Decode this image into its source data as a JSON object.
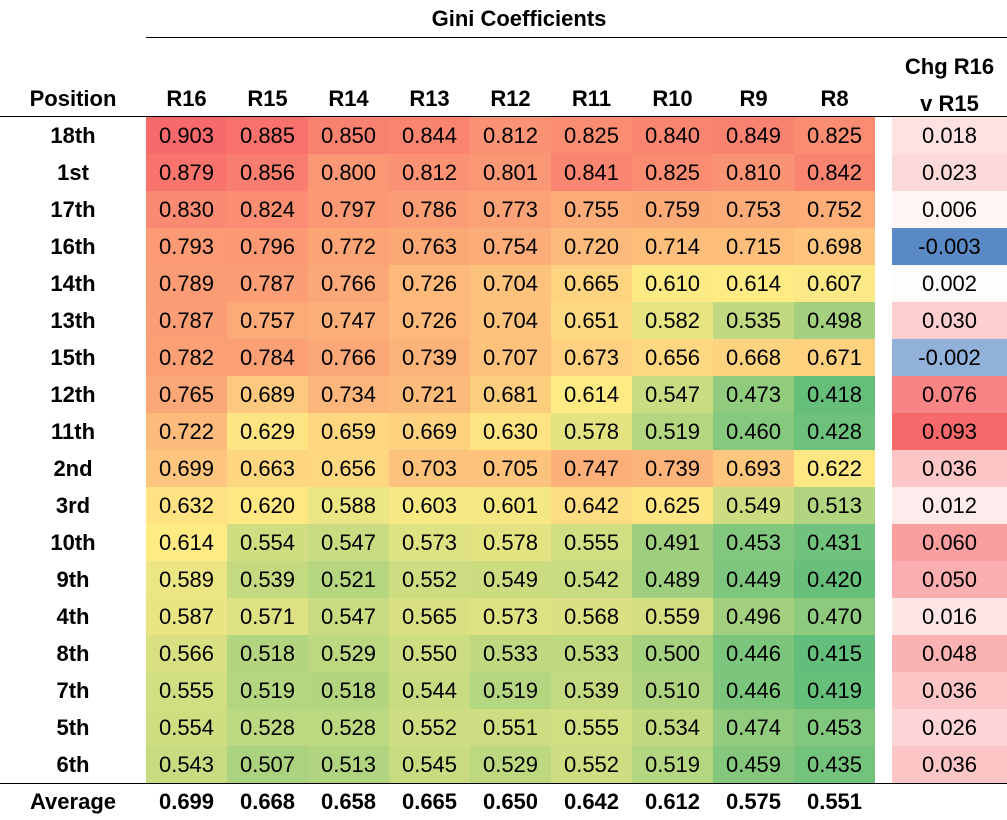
{
  "title": "Gini Coefficients",
  "position_header": "Position",
  "columns": [
    "R16",
    "R15",
    "R14",
    "R13",
    "R12",
    "R11",
    "R10",
    "R9",
    "R8"
  ],
  "change_header_line1": "Chg R16",
  "change_header_line2": "v R15",
  "rows": [
    {
      "position": "18th",
      "values": [
        "0.903",
        "0.885",
        "0.850",
        "0.844",
        "0.812",
        "0.825",
        "0.840",
        "0.849",
        "0.825"
      ],
      "change": "0.018"
    },
    {
      "position": "1st",
      "values": [
        "0.879",
        "0.856",
        "0.800",
        "0.812",
        "0.801",
        "0.841",
        "0.825",
        "0.810",
        "0.842"
      ],
      "change": "0.023"
    },
    {
      "position": "17th",
      "values": [
        "0.830",
        "0.824",
        "0.797",
        "0.786",
        "0.773",
        "0.755",
        "0.759",
        "0.753",
        "0.752"
      ],
      "change": "0.006"
    },
    {
      "position": "16th",
      "values": [
        "0.793",
        "0.796",
        "0.772",
        "0.763",
        "0.754",
        "0.720",
        "0.714",
        "0.715",
        "0.698"
      ],
      "change": "-0.003"
    },
    {
      "position": "14th",
      "values": [
        "0.789",
        "0.787",
        "0.766",
        "0.726",
        "0.704",
        "0.665",
        "0.610",
        "0.614",
        "0.607"
      ],
      "change": "0.002"
    },
    {
      "position": "13th",
      "values": [
        "0.787",
        "0.757",
        "0.747",
        "0.726",
        "0.704",
        "0.651",
        "0.582",
        "0.535",
        "0.498"
      ],
      "change": "0.030"
    },
    {
      "position": "15th",
      "values": [
        "0.782",
        "0.784",
        "0.766",
        "0.739",
        "0.707",
        "0.673",
        "0.656",
        "0.668",
        "0.671"
      ],
      "change": "-0.002"
    },
    {
      "position": "12th",
      "values": [
        "0.765",
        "0.689",
        "0.734",
        "0.721",
        "0.681",
        "0.614",
        "0.547",
        "0.473",
        "0.418"
      ],
      "change": "0.076"
    },
    {
      "position": "11th",
      "values": [
        "0.722",
        "0.629",
        "0.659",
        "0.669",
        "0.630",
        "0.578",
        "0.519",
        "0.460",
        "0.428"
      ],
      "change": "0.093"
    },
    {
      "position": "2nd",
      "values": [
        "0.699",
        "0.663",
        "0.656",
        "0.703",
        "0.705",
        "0.747",
        "0.739",
        "0.693",
        "0.622"
      ],
      "change": "0.036"
    },
    {
      "position": "3rd",
      "values": [
        "0.632",
        "0.620",
        "0.588",
        "0.603",
        "0.601",
        "0.642",
        "0.625",
        "0.549",
        "0.513"
      ],
      "change": "0.012"
    },
    {
      "position": "10th",
      "values": [
        "0.614",
        "0.554",
        "0.547",
        "0.573",
        "0.578",
        "0.555",
        "0.491",
        "0.453",
        "0.431"
      ],
      "change": "0.060"
    },
    {
      "position": "9th",
      "values": [
        "0.589",
        "0.539",
        "0.521",
        "0.552",
        "0.549",
        "0.542",
        "0.489",
        "0.449",
        "0.420"
      ],
      "change": "0.050"
    },
    {
      "position": "4th",
      "values": [
        "0.587",
        "0.571",
        "0.547",
        "0.565",
        "0.573",
        "0.568",
        "0.559",
        "0.496",
        "0.470"
      ],
      "change": "0.016"
    },
    {
      "position": "8th",
      "values": [
        "0.566",
        "0.518",
        "0.529",
        "0.550",
        "0.533",
        "0.533",
        "0.500",
        "0.446",
        "0.415"
      ],
      "change": "0.048"
    },
    {
      "position": "7th",
      "values": [
        "0.555",
        "0.519",
        "0.518",
        "0.544",
        "0.519",
        "0.539",
        "0.510",
        "0.446",
        "0.419"
      ],
      "change": "0.036"
    },
    {
      "position": "5th",
      "values": [
        "0.554",
        "0.528",
        "0.528",
        "0.552",
        "0.551",
        "0.555",
        "0.534",
        "0.474",
        "0.453"
      ],
      "change": "0.026"
    },
    {
      "position": "6th",
      "values": [
        "0.543",
        "0.507",
        "0.513",
        "0.545",
        "0.529",
        "0.552",
        "0.519",
        "0.459",
        "0.435"
      ],
      "change": "0.036"
    }
  ],
  "average": {
    "label": "Average",
    "values": [
      "0.699",
      "0.668",
      "0.658",
      "0.665",
      "0.650",
      "0.642",
      "0.612",
      "0.575",
      "0.551"
    ]
  },
  "colors": {
    "high": "#f8696b",
    "mid": "#ffeb84",
    "low": "#63be7b",
    "white": "#ffffff",
    "negative": "#5a8ac6"
  }
}
